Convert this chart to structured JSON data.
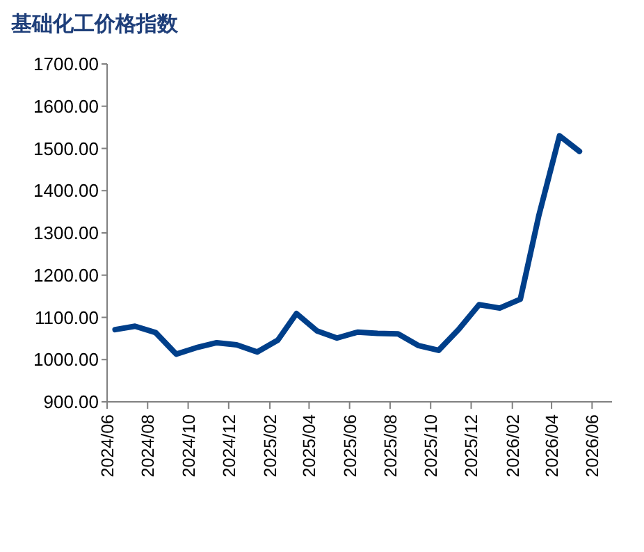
{
  "chart_data": {
    "type": "line",
    "title": "基础化工价格指数",
    "x": [
      "2024-06-13",
      "2024-07-13",
      "2024-08-13",
      "2024-09-13",
      "2024-10-13",
      "2024-11-13",
      "2024-12-13",
      "2025-01-13",
      "2025-02-13",
      "2025-03-13",
      "2025-04-13",
      "2025-05-13",
      "2025-06-13",
      "2025-07-13",
      "2025-08-13",
      "2025-09-13",
      "2025-10-13",
      "2025-11-13",
      "2025-12-13",
      "2026-01-13",
      "2026-02-13",
      "2026-03-13",
      "2026-04-13",
      "2026-05-13"
    ],
    "series": [
      {
        "color": "#003f8a",
        "values": [
          1071,
          1079,
          1064,
          1013,
          1028,
          1040,
          1035,
          1018,
          1046,
          1109,
          1068,
          1051,
          1065,
          1062,
          1061,
          1033,
          1022,
          1073,
          1130,
          1122,
          1143,
          1342,
          1530,
          1493
        ]
      }
    ],
    "xlim": [
      "2024-06",
      "2026-07"
    ],
    "xticks": [
      {
        "value": "2024-06",
        "label": "2024/06"
      },
      {
        "value": "2024-08",
        "label": "2024/08"
      },
      {
        "value": "2024-10",
        "label": "2024/10"
      },
      {
        "value": "2024-12",
        "label": "2024/12"
      },
      {
        "value": "2025-02",
        "label": "2025/02"
      },
      {
        "value": "2025-04",
        "label": "2025/04"
      },
      {
        "value": "2025-06",
        "label": "2025/06"
      },
      {
        "value": "2025-08",
        "label": "2025/08"
      },
      {
        "value": "2025-10",
        "label": "2025/10"
      },
      {
        "value": "2025-12",
        "label": "2025/12"
      },
      {
        "value": "2026-02",
        "label": "2026/02"
      },
      {
        "value": "2026-04",
        "label": "2026/04"
      },
      {
        "value": "2026-06",
        "label": "2026/06"
      }
    ],
    "ylim": [
      900,
      1700
    ],
    "yticks": [
      {
        "value": 900,
        "label": "900.00"
      },
      {
        "value": 1000,
        "label": "1000.00"
      },
      {
        "value": 1100,
        "label": "1100.00"
      },
      {
        "value": 1200,
        "label": "1200.00"
      },
      {
        "value": 1300,
        "label": "1300.00"
      },
      {
        "value": 1400,
        "label": "1400.00"
      },
      {
        "value": 1500,
        "label": "1500.00"
      },
      {
        "value": 1600,
        "label": "1600.00"
      },
      {
        "value": 1700,
        "label": "1700.00"
      }
    ],
    "grid": false,
    "marker": "none",
    "line_style": "solid"
  }
}
